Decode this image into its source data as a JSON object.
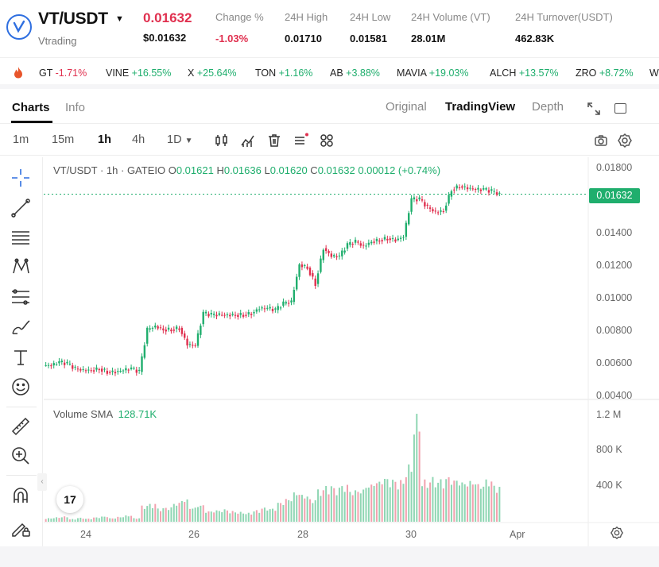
{
  "header": {
    "pair": "VT/USDT",
    "name": "Vtrading",
    "price": "0.01632",
    "price_usd": "$0.01632",
    "stats": [
      {
        "label": "Change %",
        "value": "-1.03%"
      },
      {
        "label": "24H High",
        "value": "0.01710"
      },
      {
        "label": "24H Low",
        "value": "0.01581"
      },
      {
        "label": "24H Volume (VT)",
        "value": "28.01M"
      },
      {
        "label": "24H Turnover(USDT)",
        "value": "462.83K"
      }
    ]
  },
  "ticker": [
    {
      "symbol": "GT",
      "change": "-1.71%"
    },
    {
      "symbol": "VINE",
      "change": "+16.55%"
    },
    {
      "symbol": "X",
      "change": "+25.64%"
    },
    {
      "symbol": "TON",
      "change": "+1.16%"
    },
    {
      "symbol": "AB",
      "change": "+3.88%"
    },
    {
      "symbol": "MAVIA",
      "change": "+19.03%"
    },
    {
      "symbol": "ALCH",
      "change": "+13.57%"
    },
    {
      "symbol": "ZRO",
      "change": "+8.72%"
    },
    {
      "symbol": "W",
      "change": ""
    }
  ],
  "tabs": {
    "charts": "Charts",
    "info": "Info",
    "original": "Original",
    "tradingview": "TradingView",
    "depth": "Depth"
  },
  "timeframes": [
    "1m",
    "15m",
    "1h",
    "4h",
    "1D"
  ],
  "icons": [
    "fire-icon",
    "expand-icon",
    "window-icon",
    "candle-type-icon",
    "indicators-icon",
    "delete-icon",
    "list-icon",
    "layout-icon",
    "camera-icon",
    "settings-icon",
    "crosshair-icon",
    "trendline-icon",
    "horizontal-lines-icon",
    "pattern-icon",
    "fib-icon",
    "brush-icon",
    "text-icon",
    "emoji-icon",
    "ruler-icon",
    "zoom-icon",
    "magnet-icon",
    "lock-draw-icon"
  ],
  "chart": {
    "legend_symbol": "VT/USDT · 1h · GATEIO",
    "legend_o": "0.01621",
    "legend_h": "0.01636",
    "legend_l": "0.01620",
    "legend_c": "0.01632",
    "legend_change": "0.00012 (+0.74%)",
    "volume_label": "Volume SMA",
    "volume_value": "128.71K",
    "price_tag": "0.01632",
    "y_labels": [
      "0.01800",
      "0.01400",
      "0.01200",
      "0.01000",
      "0.00800",
      "0.00600",
      "0.00400"
    ],
    "vol_labels": [
      "1.2 M",
      "800 K",
      "400 K"
    ],
    "x_labels": [
      "24",
      "26",
      "28",
      "30",
      "Apr"
    ],
    "tv_logo": "17"
  },
  "chart_data": {
    "type": "candlestick",
    "title": "VT/USDT · 1h · GATEIO",
    "x": [
      "24",
      "26",
      "28",
      "30",
      "Apr"
    ],
    "ylim": [
      0.004,
      0.018
    ],
    "price_series": [
      0.0058,
      0.006,
      0.0059,
      0.0056,
      0.0055,
      0.0055,
      0.0056,
      0.0054,
      0.0054,
      0.0055,
      0.0056,
      0.0054,
      0.008,
      0.0082,
      0.008,
      0.008,
      0.0081,
      0.0071,
      0.007,
      0.009,
      0.0089,
      0.0089,
      0.0089,
      0.0089,
      0.0089,
      0.009,
      0.0093,
      0.0093,
      0.0092,
      0.0096,
      0.0097,
      0.012,
      0.0118,
      0.0108,
      0.013,
      0.0125,
      0.0125,
      0.0132,
      0.0134,
      0.0131,
      0.0134,
      0.0135,
      0.0136,
      0.0135,
      0.0137,
      0.016,
      0.016,
      0.0155,
      0.0152,
      0.0153,
      0.0166,
      0.0168,
      0.0167,
      0.0166,
      0.0166,
      0.0165,
      0.0163
    ],
    "last_price": 0.01632,
    "volume_series": [
      40,
      50,
      60,
      30,
      45,
      35,
      50,
      60,
      40,
      55,
      70,
      40,
      180,
      200,
      150,
      160,
      210,
      250,
      160,
      190,
      120,
      130,
      140,
      120,
      110,
      100,
      130,
      160,
      150,
      220,
      260,
      330,
      300,
      250,
      360,
      400,
      380,
      410,
      350,
      360,
      420,
      460,
      500,
      480,
      470,
      640,
      1200,
      470,
      500,
      480,
      510,
      480,
      450,
      460,
      420,
      470,
      400
    ]
  }
}
